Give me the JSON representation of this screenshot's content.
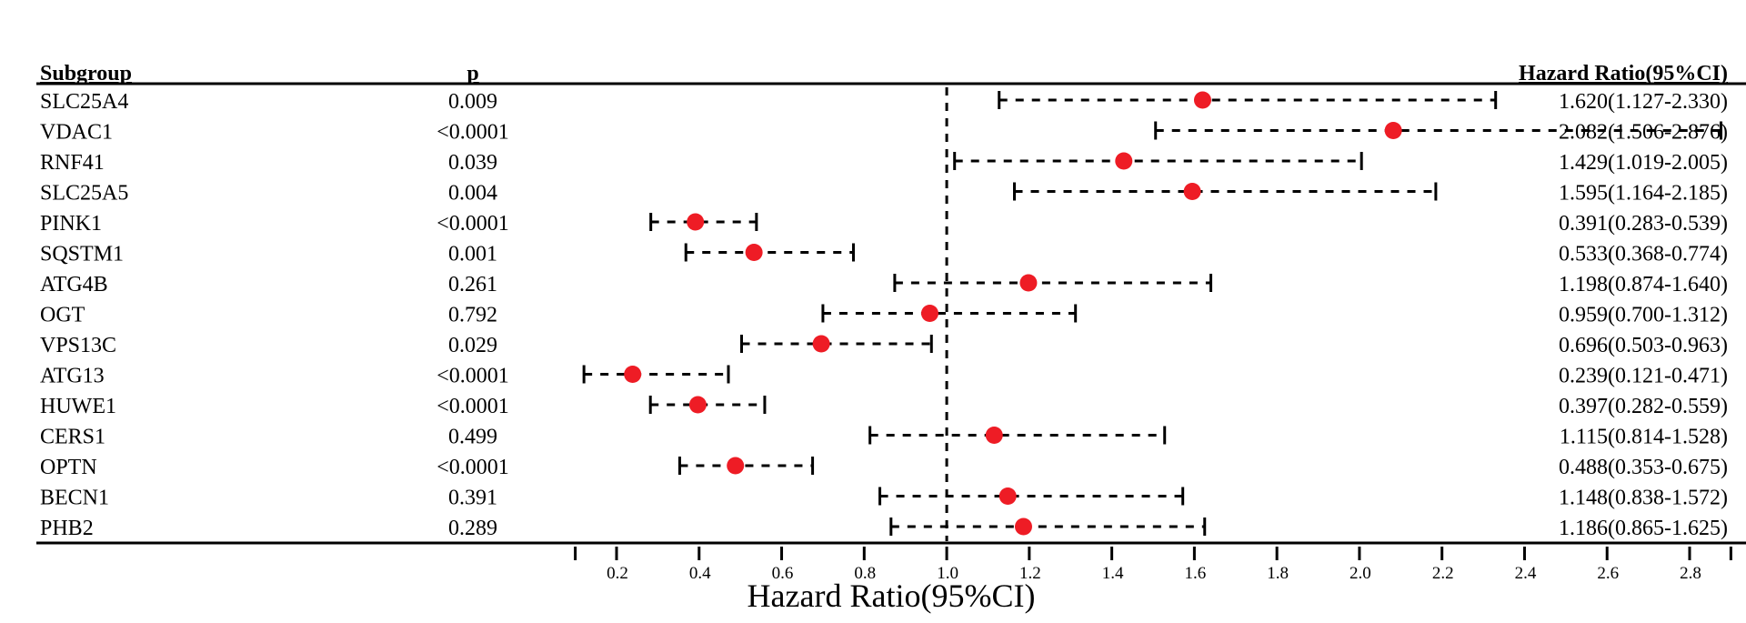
{
  "chart_data": {
    "type": "forest",
    "headers": {
      "subgroup": "Subgroup",
      "p": "p",
      "hr": "Hazard Ratio(95%CI)"
    },
    "xlabel": "Hazard Ratio(95%CI)",
    "xlim": [
      0.1,
      2.9
    ],
    "ticks": [
      0.2,
      0.4,
      0.6,
      0.8,
      1.0,
      1.2,
      1.4,
      1.6,
      1.8,
      2.0,
      2.2,
      2.4,
      2.6,
      2.8
    ],
    "tick_labels": [
      "0.2",
      "0.4",
      "0.6",
      "0.8",
      "1.0",
      "1.2",
      "1.4",
      "1.6",
      "1.8",
      "2.0",
      "2.2",
      "2.4",
      "2.6",
      "2.8"
    ],
    "reference_line": 1.0,
    "point_color": "#ee1c25",
    "rows": [
      {
        "name": "SLC25A4",
        "p": "0.009",
        "hr": 1.62,
        "lo": 1.127,
        "hi": 2.33,
        "label": "1.620(1.127-2.330)"
      },
      {
        "name": "VDAC1",
        "p": "<0.0001",
        "hr": 2.082,
        "lo": 1.506,
        "hi": 2.876,
        "label": "2.082(1.506-2.876)"
      },
      {
        "name": "RNF41",
        "p": "0.039",
        "hr": 1.429,
        "lo": 1.019,
        "hi": 2.005,
        "label": "1.429(1.019-2.005)"
      },
      {
        "name": "SLC25A5",
        "p": "0.004",
        "hr": 1.595,
        "lo": 1.164,
        "hi": 2.185,
        "label": "1.595(1.164-2.185)"
      },
      {
        "name": "PINK1",
        "p": "<0.0001",
        "hr": 0.391,
        "lo": 0.283,
        "hi": 0.539,
        "label": "0.391(0.283-0.539)"
      },
      {
        "name": "SQSTM1",
        "p": "0.001",
        "hr": 0.533,
        "lo": 0.368,
        "hi": 0.774,
        "label": "0.533(0.368-0.774)"
      },
      {
        "name": "ATG4B",
        "p": "0.261",
        "hr": 1.198,
        "lo": 0.874,
        "hi": 1.64,
        "label": "1.198(0.874-1.640)"
      },
      {
        "name": "OGT",
        "p": "0.792",
        "hr": 0.959,
        "lo": 0.7,
        "hi": 1.312,
        "label": "0.959(0.700-1.312)"
      },
      {
        "name": "VPS13C",
        "p": "0.029",
        "hr": 0.696,
        "lo": 0.503,
        "hi": 0.963,
        "label": "0.696(0.503-0.963)"
      },
      {
        "name": "ATG13",
        "p": "<0.0001",
        "hr": 0.239,
        "lo": 0.121,
        "hi": 0.471,
        "label": "0.239(0.121-0.471)"
      },
      {
        "name": "HUWE1",
        "p": "<0.0001",
        "hr": 0.397,
        "lo": 0.282,
        "hi": 0.559,
        "label": "0.397(0.282-0.559)"
      },
      {
        "name": "CERS1",
        "p": "0.499",
        "hr": 1.115,
        "lo": 0.814,
        "hi": 1.528,
        "label": "1.115(0.814-1.528)"
      },
      {
        "name": "OPTN",
        "p": "<0.0001",
        "hr": 0.488,
        "lo": 0.353,
        "hi": 0.675,
        "label": "0.488(0.353-0.675)"
      },
      {
        "name": "BECN1",
        "p": "0.391",
        "hr": 1.148,
        "lo": 0.838,
        "hi": 1.572,
        "label": "1.148(0.838-1.572)"
      },
      {
        "name": "PHB2",
        "p": "0.289",
        "hr": 1.186,
        "lo": 0.865,
        "hi": 1.625,
        "label": "1.186(0.865-1.625)"
      }
    ]
  }
}
